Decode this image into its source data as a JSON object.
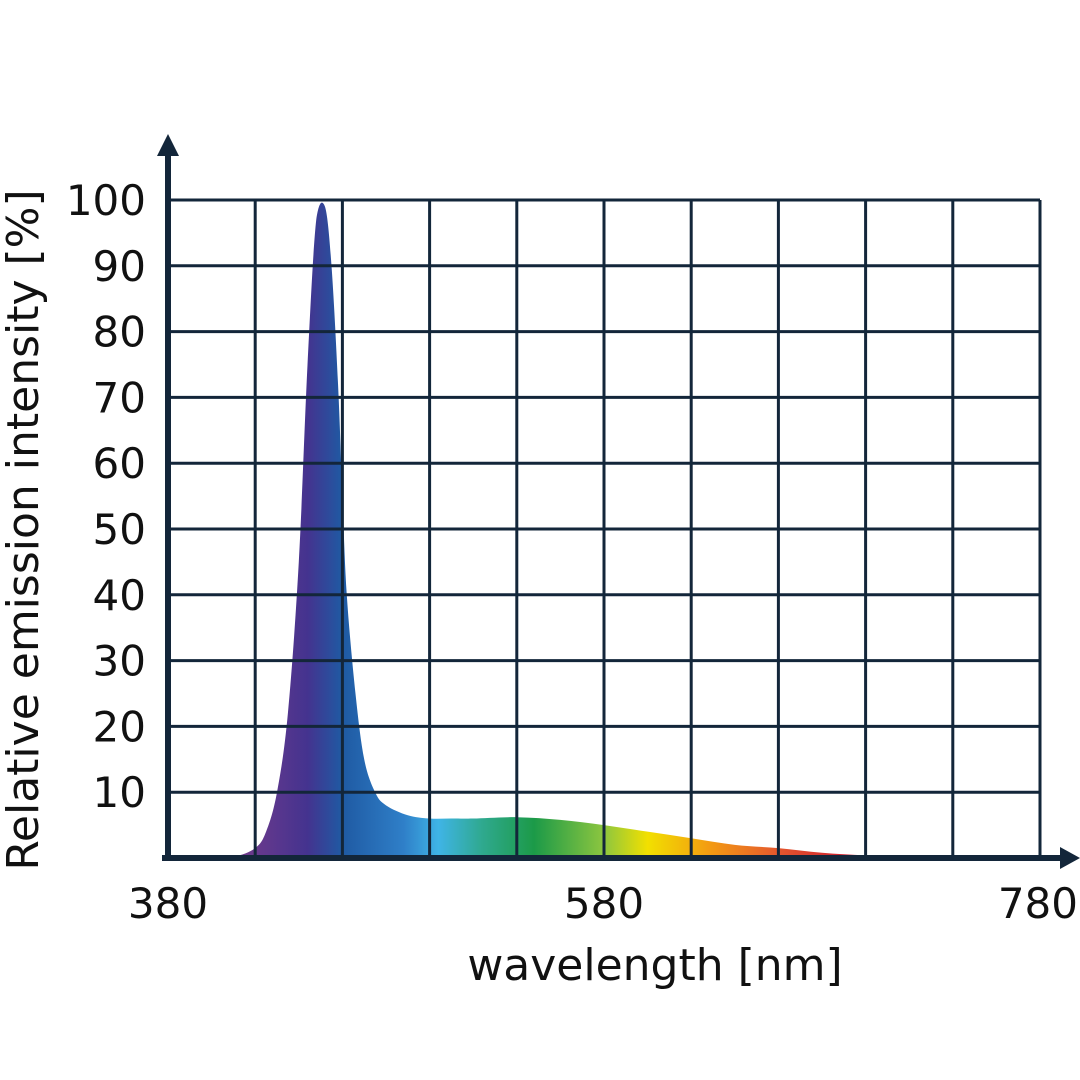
{
  "chart_data": {
    "type": "area",
    "xlabel": "wavelength [nm]",
    "ylabel": "Relative emission intensity [%]",
    "xlim": [
      380,
      780
    ],
    "ylim": [
      0,
      100
    ],
    "x_ticks": [
      380,
      580,
      780
    ],
    "y_ticks": [
      10,
      20,
      30,
      40,
      50,
      60,
      70,
      80,
      90,
      100
    ],
    "grid": true,
    "colors": {
      "axis": "#13263a",
      "grid": "#13263a"
    },
    "series": [
      {
        "x": [
          380,
          395,
          410,
          420,
          425,
          430,
          435,
          440,
          444,
          448,
          452,
          455,
          458,
          460,
          462,
          466,
          470,
          475,
          480,
          490,
          500,
          510,
          520,
          540,
          560,
          580,
          600,
          620,
          640,
          660,
          680,
          700,
          720,
          740,
          760,
          780
        ],
        "values": [
          0,
          0,
          0.2,
          1.5,
          4,
          10,
          22,
          45,
          75,
          97,
          99,
          90,
          72,
          55,
          40,
          25,
          15,
          10,
          8,
          6.5,
          6,
          6,
          6,
          6.2,
          5.8,
          5,
          4,
          3,
          2,
          1.5,
          0.8,
          0.4,
          0.2,
          0.1,
          0,
          0
        ]
      }
    ]
  }
}
